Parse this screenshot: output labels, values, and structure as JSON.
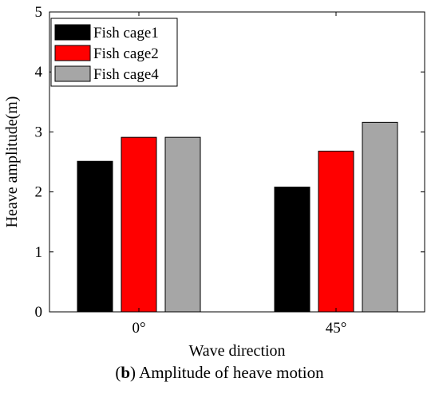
{
  "chart_data": {
    "type": "bar",
    "title": "",
    "xlabel": "Wave direction",
    "ylabel": "Heave amplitude(m)",
    "categories": [
      "0°",
      "45°"
    ],
    "series": [
      {
        "name": "Fish cage1",
        "values": [
          2.51,
          2.08
        ],
        "color": "#000000"
      },
      {
        "name": "Fish cage2",
        "values": [
          2.91,
          2.68
        ],
        "color": "#ff0000"
      },
      {
        "name": "Fish cage4",
        "values": [
          2.91,
          3.16
        ],
        "color": "#a6a6a6"
      }
    ],
    "ylim": [
      0,
      5
    ],
    "yticks": [
      "0",
      "1",
      "2",
      "3",
      "4",
      "5"
    ],
    "grid": false,
    "legend_position": "top-left"
  },
  "caption": {
    "prefix": "b",
    "text": "Amplitude of heave motion"
  }
}
